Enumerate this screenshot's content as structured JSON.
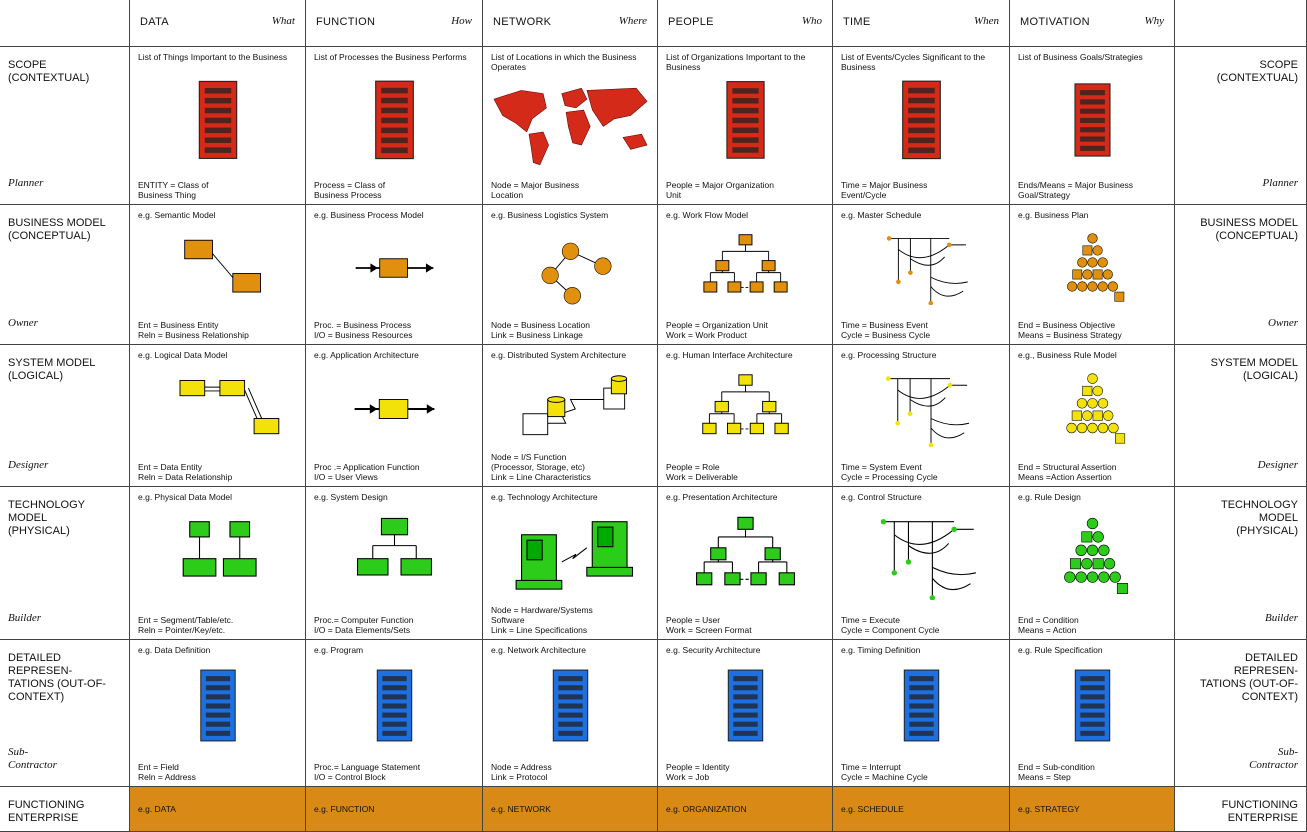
{
  "columns": [
    {
      "title": "DATA",
      "question": "What"
    },
    {
      "title": "FUNCTION",
      "question": "How"
    },
    {
      "title": "NETWORK",
      "question": "Where"
    },
    {
      "title": "PEOPLE",
      "question": "Who"
    },
    {
      "title": "TIME",
      "question": "When"
    },
    {
      "title": "MOTIVATION",
      "question": "Why"
    }
  ],
  "rows": [
    {
      "label": "SCOPE (CONTEXTUAL)",
      "role": "Planner",
      "cells": [
        {
          "top": "List of Things Important to the Business",
          "bottom": [
            "ENTITY = Class of",
            "Business Thing"
          ]
        },
        {
          "top": "List of Processes the Business Performs",
          "bottom": [
            "Process = Class of",
            "Business Process"
          ]
        },
        {
          "top": "List of Locations in which the Business Operates",
          "bottom": [
            "Node = Major Business",
            "Location"
          ]
        },
        {
          "top": "List of Organizations Important to the Business",
          "bottom": [
            "People = Major Organization",
            "Unit"
          ]
        },
        {
          "top": "List of Events/Cycles Significant to the Business",
          "bottom": [
            "Time = Major Business",
            "Event/Cycle"
          ]
        },
        {
          "top": "List of Business Goals/Strategies",
          "bottom": [
            "Ends/Means = Major Business",
            "Goal/Strategy"
          ]
        }
      ]
    },
    {
      "label": "BUSINESS MODEL (CONCEPTUAL)",
      "role": "Owner",
      "cells": [
        {
          "top": "e.g. Semantic Model",
          "bottom": [
            "Ent = Business Entity",
            "Reln = Business Relationship"
          ]
        },
        {
          "top": "e.g. Business Process Model",
          "bottom": [
            "Proc. = Business Process",
            "I/O = Business Resources"
          ]
        },
        {
          "top": "e.g. Business Logistics System",
          "bottom": [
            "Node = Business Location",
            "Link = Business Linkage"
          ]
        },
        {
          "top": "e.g. Work Flow Model",
          "bottom": [
            "People = Organization Unit",
            "Work = Work Product"
          ]
        },
        {
          "top": "e.g. Master Schedule",
          "bottom": [
            "Time = Business Event",
            "Cycle = Business Cycle"
          ]
        },
        {
          "top": "e.g. Business Plan",
          "bottom": [
            "End = Business Objective",
            "Means = Business Strategy"
          ]
        }
      ]
    },
    {
      "label": "SYSTEM MODEL (LOGICAL)",
      "role": "Designer",
      "cells": [
        {
          "top": "e.g. Logical Data Model",
          "bottom": [
            "Ent = Data Entity",
            "Reln = Data Relationship"
          ]
        },
        {
          "top": "e.g. Application Architecture",
          "bottom": [
            "Proc .= Application Function",
            "I/O = User Views"
          ]
        },
        {
          "top": "e.g. Distributed System Architecture",
          "bottom": [
            "Node = I/S Function",
            "(Processor, Storage, etc)",
            "Link = Line Characteristics"
          ]
        },
        {
          "top": "e.g. Human Interface Architecture",
          "bottom": [
            "People = Role",
            "Work = Deliverable"
          ]
        },
        {
          "top": "e.g. Processing Structure",
          "bottom": [
            "Time = System Event",
            "Cycle = Processing Cycle"
          ]
        },
        {
          "top": "e.g., Business Rule Model",
          "bottom": [
            "End = Structural Assertion",
            "Means =Action Assertion"
          ]
        }
      ]
    },
    {
      "label": "TECHNOLOGY MODEL (PHYSICAL)",
      "role": "Builder",
      "cells": [
        {
          "top": "e.g. Physical Data Model",
          "bottom": [
            "Ent = Segment/Table/etc.",
            "Reln = Pointer/Key/etc."
          ]
        },
        {
          "top": "e.g. System Design",
          "bottom": [
            "Proc.= Computer Function",
            "I/O = Data Elements/Sets"
          ]
        },
        {
          "top": "e.g. Technology Architecture",
          "bottom": [
            "Node = Hardware/Systems",
            "Software",
            "Link = Line Specifications"
          ]
        },
        {
          "top": "e.g. Presentation Architecture",
          "bottom": [
            "People = User",
            "Work = Screen Format"
          ]
        },
        {
          "top": "e.g. Control Structure",
          "bottom": [
            "Time = Execute",
            "Cycle = Component Cycle"
          ]
        },
        {
          "top": "e.g. Rule Design",
          "bottom": [
            "End = Condition",
            "Means = Action"
          ]
        }
      ]
    },
    {
      "label": "DETAILED REPRESEN- TATIONS (OUT-OF- CONTEXT)",
      "role": "Sub-Contractor",
      "cells": [
        {
          "top": "e.g. Data Definition",
          "bottom": [
            "Ent = Field",
            "Reln = Address"
          ]
        },
        {
          "top": "e.g. Program",
          "bottom": [
            "Proc.= Language Statement",
            "I/O = Control Block"
          ]
        },
        {
          "top": "e.g. Network Architecture",
          "bottom": [
            "Node = Address",
            "Link = Protocol"
          ]
        },
        {
          "top": "e.g. Security Architecture",
          "bottom": [
            "People = Identity",
            "Work = Job"
          ]
        },
        {
          "top": "e.g. Timing Definition",
          "bottom": [
            "Time = Interrupt",
            "Cycle = Machine Cycle"
          ]
        },
        {
          "top": "e.g. Rule Specification",
          "bottom": [
            "End = Sub-condition",
            "Means = Step"
          ]
        }
      ]
    },
    {
      "label": "FUNCTIONING ENTERPRISE",
      "cells": [
        {
          "top": "e.g. DATA"
        },
        {
          "top": "e.g. FUNCTION"
        },
        {
          "top": "e.g. NETWORK"
        },
        {
          "top": "e.g. ORGANIZATION"
        },
        {
          "top": "e.g. SCHEDULE"
        },
        {
          "top": "e.g. STRATEGY"
        }
      ]
    }
  ]
}
